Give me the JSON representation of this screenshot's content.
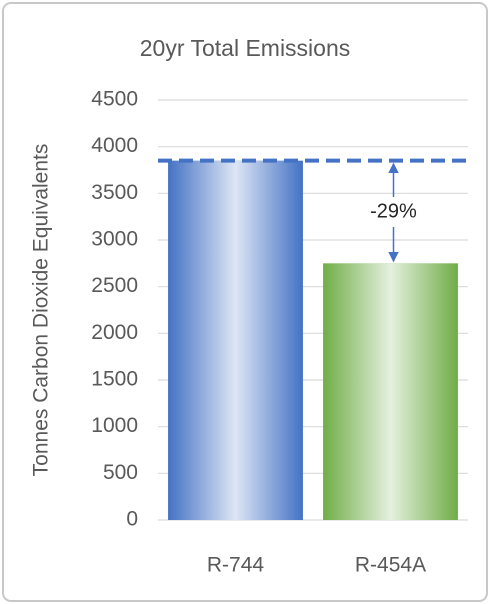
{
  "chart_data": {
    "type": "bar",
    "title": "20yr Total Emissions",
    "y_label": "Tonnes Carbon Dioxide Equivalents",
    "categories": [
      "R-744",
      "R-454A"
    ],
    "values": [
      3850,
      2750
    ],
    "colors": [
      "#4472c4",
      "#70ad47"
    ],
    "ylim": [
      0,
      4500
    ],
    "yticks": [
      0,
      500,
      1000,
      1500,
      2000,
      2500,
      3000,
      3500,
      4000,
      4500
    ],
    "grid": true,
    "annotation": "-29%"
  }
}
